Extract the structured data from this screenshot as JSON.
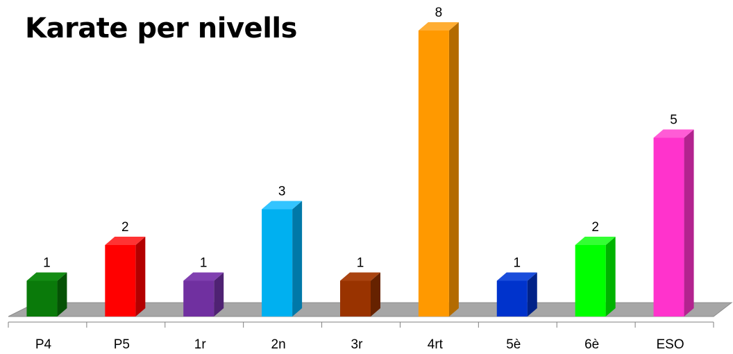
{
  "chart_data": {
    "type": "bar",
    "title": "Karate per nivells",
    "xlabel": "",
    "ylabel": "",
    "categories": [
      "P4",
      "P5",
      "1r",
      "2n",
      "3r",
      "4rt",
      "5è",
      "6è",
      "ESO"
    ],
    "values": [
      1,
      2,
      1,
      3,
      1,
      8,
      1,
      2,
      5
    ],
    "ylim": [
      0,
      8
    ],
    "grid": false,
    "legend": "none",
    "colors": [
      "#0a7a0a",
      "#ff0000",
      "#7030a0",
      "#00b0f0",
      "#993300",
      "#ff9900",
      "#0033cc",
      "#00ff00",
      "#ff33cc"
    ],
    "side_colors": [
      "#055205",
      "#b30000",
      "#4f2273",
      "#0078a8",
      "#662200",
      "#b36b00",
      "#002288",
      "#00b300",
      "#b3238f"
    ],
    "top_colors": [
      "#148c14",
      "#ff3333",
      "#8040b0",
      "#33c4ff",
      "#aa4411",
      "#ffad33",
      "#1a4ddb",
      "#33ff33",
      "#ff5cd6"
    ],
    "floor_color": "#a6a6a6"
  }
}
